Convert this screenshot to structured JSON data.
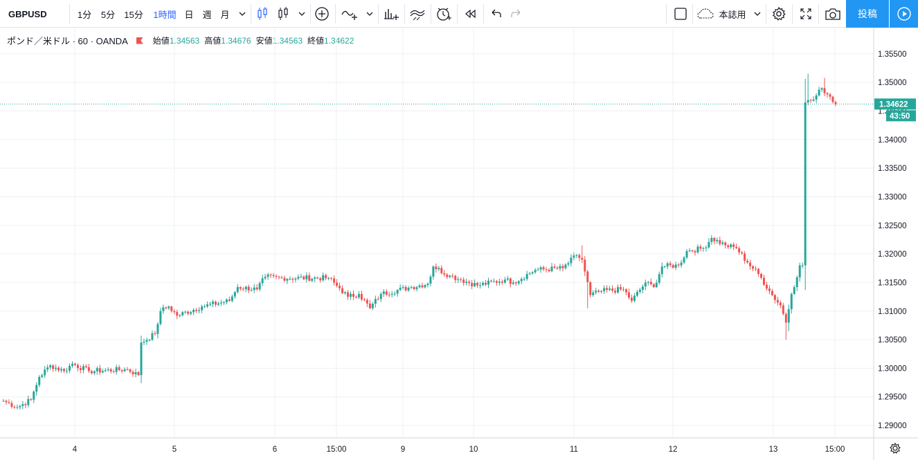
{
  "toolbar": {
    "symbol": "GBPUSD",
    "intervals": [
      "1分",
      "5分",
      "15分",
      "1時間",
      "日",
      "週",
      "月"
    ],
    "active_interval": "1時間",
    "layout_label": "本誌用",
    "post_label": "投稿"
  },
  "legend": {
    "symbol_text": "ポンド／米ドル · 60 · OANDA",
    "open_label": "始値",
    "open": "1.34563",
    "high_label": "高値",
    "high": "1.34676",
    "low_label": "安値",
    "low": "1.34563",
    "close_label": "終値",
    "close": "1.34622"
  },
  "colors": {
    "up": "#26a69a",
    "down": "#ef5350",
    "grid": "#eef0f3",
    "accent": "#2196f3"
  },
  "chart_data": {
    "type": "candlestick",
    "symbol": "GBPUSD",
    "timeframe": "60",
    "ylim": [
      1.2865,
      1.358
    ],
    "y_ticks": [
      1.29,
      1.295,
      1.3,
      1.305,
      1.31,
      1.315,
      1.32,
      1.325,
      1.33,
      1.335,
      1.34,
      1.345,
      1.35,
      1.355
    ],
    "x_ticks": [
      "4",
      "5",
      "6",
      "15:00",
      "9",
      "10",
      "11",
      "12",
      "13",
      "15:00"
    ],
    "last_price": "1.34622",
    "countdown": "43:50",
    "anchors": [
      {
        "i": 0,
        "p": 1.2943
      },
      {
        "i": 5,
        "p": 1.2932
      },
      {
        "i": 10,
        "p": 1.2945
      },
      {
        "i": 13,
        "p": 1.2985
      },
      {
        "i": 17,
        "p": 1.3005
      },
      {
        "i": 22,
        "p": 1.2995
      },
      {
        "i": 25,
        "p": 1.3008
      },
      {
        "i": 31,
        "p": 1.2995
      },
      {
        "i": 45,
        "p": 1.2998
      },
      {
        "i": 49,
        "p": 1.2988
      },
      {
        "i": 50,
        "p": 1.3045
      },
      {
        "i": 55,
        "p": 1.306
      },
      {
        "i": 57,
        "p": 1.31
      },
      {
        "i": 60,
        "p": 1.3108
      },
      {
        "i": 63,
        "p": 1.3092
      },
      {
        "i": 72,
        "p": 1.3108
      },
      {
        "i": 82,
        "p": 1.3118
      },
      {
        "i": 85,
        "p": 1.3142
      },
      {
        "i": 92,
        "p": 1.3138
      },
      {
        "i": 95,
        "p": 1.316
      },
      {
        "i": 101,
        "p": 1.3158
      },
      {
        "i": 118,
        "p": 1.3158
      },
      {
        "i": 122,
        "p": 1.314
      },
      {
        "i": 125,
        "p": 1.3125
      },
      {
        "i": 129,
        "p": 1.313
      },
      {
        "i": 133,
        "p": 1.3105
      },
      {
        "i": 137,
        "p": 1.313
      },
      {
        "i": 148,
        "p": 1.3142
      },
      {
        "i": 154,
        "p": 1.3148
      },
      {
        "i": 156,
        "p": 1.3178
      },
      {
        "i": 162,
        "p": 1.3162
      },
      {
        "i": 166,
        "p": 1.3155
      },
      {
        "i": 172,
        "p": 1.3145
      },
      {
        "i": 182,
        "p": 1.3155
      },
      {
        "i": 185,
        "p": 1.315
      },
      {
        "i": 193,
        "p": 1.3172
      },
      {
        "i": 203,
        "p": 1.3175
      },
      {
        "i": 208,
        "p": 1.3198
      },
      {
        "i": 210,
        "p": 1.319
      },
      {
        "i": 213,
        "p": 1.3128
      },
      {
        "i": 217,
        "p": 1.3135
      },
      {
        "i": 225,
        "p": 1.3138
      },
      {
        "i": 228,
        "p": 1.3118
      },
      {
        "i": 233,
        "p": 1.315
      },
      {
        "i": 236,
        "p": 1.3142
      },
      {
        "i": 239,
        "p": 1.3178
      },
      {
        "i": 245,
        "p": 1.318
      },
      {
        "i": 248,
        "p": 1.3205
      },
      {
        "i": 254,
        "p": 1.321
      },
      {
        "i": 257,
        "p": 1.3228
      },
      {
        "i": 262,
        "p": 1.3215
      },
      {
        "i": 266,
        "p": 1.321
      },
      {
        "i": 270,
        "p": 1.3185
      },
      {
        "i": 274,
        "p": 1.3165
      },
      {
        "i": 279,
        "p": 1.3128
      },
      {
        "i": 282,
        "p": 1.311
      },
      {
        "i": 284,
        "p": 1.308
      },
      {
        "i": 286,
        "p": 1.313
      },
      {
        "i": 289,
        "p": 1.318
      },
      {
        "i": 290,
        "p": 1.318
      },
      {
        "i": 291,
        "p": 1.3465
      },
      {
        "i": 294,
        "p": 1.347
      },
      {
        "i": 297,
        "p": 1.349
      },
      {
        "i": 300,
        "p": 1.3475
      },
      {
        "i": 302,
        "p": 1.3462
      }
    ]
  }
}
